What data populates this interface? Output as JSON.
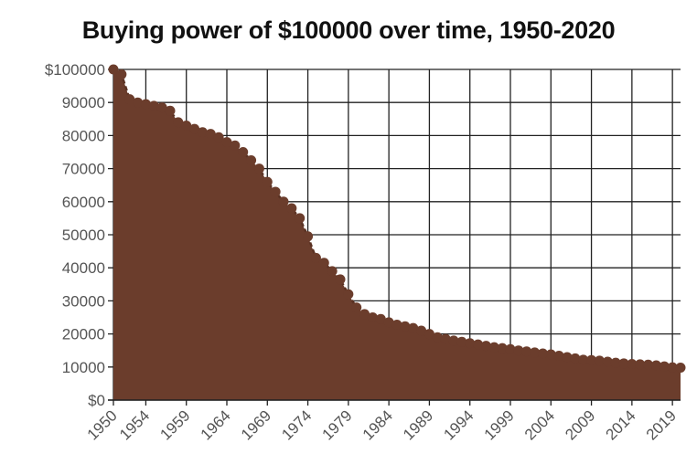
{
  "chart_data": {
    "type": "area",
    "title": "Buying power of $100000 over time, 1950-2020",
    "xlabel": "",
    "ylabel": "",
    "xlim": [
      1950,
      2020
    ],
    "ylim": [
      0,
      100000
    ],
    "grid": true,
    "x_tick_labels": [
      "1950",
      "1954",
      "1959",
      "1964",
      "1969",
      "1974",
      "1979",
      "1984",
      "1989",
      "1994",
      "1999",
      "2004",
      "2009",
      "2014",
      "2019"
    ],
    "y_tick_labels": [
      "$0",
      "10000",
      "20000",
      "30000",
      "40000",
      "50000",
      "60000",
      "70000",
      "80000",
      "90000",
      "$100000"
    ],
    "series": [
      {
        "name": "Buying power",
        "color": "#6b3d2c",
        "x": [
          1950,
          1951,
          1952,
          1953,
          1954,
          1955,
          1956,
          1957,
          1958,
          1959,
          1960,
          1961,
          1962,
          1963,
          1964,
          1965,
          1966,
          1967,
          1968,
          1969,
          1970,
          1971,
          1972,
          1973,
          1974,
          1975,
          1976,
          1977,
          1978,
          1979,
          1980,
          1981,
          1982,
          1983,
          1984,
          1985,
          1986,
          1987,
          1988,
          1989,
          1990,
          1991,
          1992,
          1993,
          1994,
          1995,
          1996,
          1997,
          1998,
          1999,
          2000,
          2001,
          2002,
          2003,
          2004,
          2005,
          2006,
          2007,
          2008,
          2009,
          2010,
          2011,
          2012,
          2013,
          2014,
          2015,
          2016,
          2017,
          2018,
          2019,
          2020
        ],
        "values": [
          100000,
          98500,
          91000,
          90000,
          89500,
          89000,
          88500,
          87500,
          84000,
          83000,
          82000,
          81000,
          80500,
          79500,
          78000,
          77000,
          75000,
          72500,
          70000,
          66000,
          63000,
          60000,
          58000,
          55000,
          49500,
          43000,
          41500,
          39000,
          36500,
          32000,
          28000,
          26000,
          25000,
          24500,
          23500,
          22800,
          22300,
          21800,
          21000,
          20000,
          19000,
          18500,
          18000,
          17600,
          17200,
          16800,
          16400,
          16000,
          15700,
          15400,
          15000,
          14700,
          14400,
          14100,
          13800,
          13400,
          13000,
          12600,
          12200,
          12100,
          11900,
          11600,
          11300,
          11100,
          10900,
          10800,
          10700,
          10500,
          10200,
          9900,
          9800
        ]
      }
    ]
  }
}
